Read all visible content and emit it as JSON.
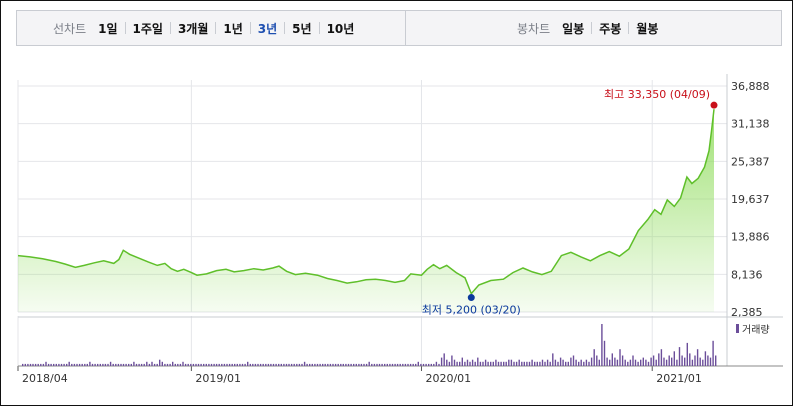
{
  "toolbar": {
    "line_chart_label": "선차트",
    "periods": [
      "1일",
      "1주일",
      "3개월",
      "1년",
      "3년",
      "5년",
      "10년"
    ],
    "active_period": "3년",
    "candle_chart_label": "봉차트",
    "candle_periods": [
      "일봉",
      "주봉",
      "월봉"
    ]
  },
  "chart_data": {
    "type": "line",
    "y_ticks": [
      "36,888",
      "31,138",
      "25,387",
      "19,637",
      "13,886",
      "8,136",
      "2,385"
    ],
    "ylim": [
      2385,
      36888
    ],
    "x_ticks": [
      "2018/04",
      "2019/01",
      "2020/01",
      "2021/01"
    ],
    "max_label": "최고 33,350 (04/09)",
    "min_label": "최저 5,200 (03/20)",
    "volume_label": "거래량",
    "colors": {
      "line": "#5fbf2a",
      "fill": "#8fdc5c",
      "max": "#c8101a",
      "min": "#0b3a9c",
      "volume": "#6b4e9a"
    },
    "price": [
      [
        "2018-04-01",
        11000
      ],
      [
        "2018-04-20",
        10800
      ],
      [
        "2018-05-10",
        10500
      ],
      [
        "2018-05-31",
        10100
      ],
      [
        "2018-06-15",
        9700
      ],
      [
        "2018-07-01",
        9200
      ],
      [
        "2018-07-15",
        9500
      ],
      [
        "2018-07-31",
        9900
      ],
      [
        "2018-08-15",
        10200
      ],
      [
        "2018-08-31",
        9800
      ],
      [
        "2018-09-08",
        10400
      ],
      [
        "2018-09-15",
        11800
      ],
      [
        "2018-09-25",
        11200
      ],
      [
        "2018-10-10",
        10600
      ],
      [
        "2018-10-25",
        10000
      ],
      [
        "2018-11-08",
        9500
      ],
      [
        "2018-11-20",
        9800
      ],
      [
        "2018-11-30",
        9000
      ],
      [
        "2018-12-10",
        8600
      ],
      [
        "2018-12-20",
        8900
      ],
      [
        "2019-01-01",
        8400
      ],
      [
        "2019-01-10",
        8000
      ],
      [
        "2019-01-25",
        8200
      ],
      [
        "2019-02-10",
        8700
      ],
      [
        "2019-02-25",
        8900
      ],
      [
        "2019-03-10",
        8500
      ],
      [
        "2019-03-25",
        8700
      ],
      [
        "2019-04-10",
        9000
      ],
      [
        "2019-04-25",
        8800
      ],
      [
        "2019-05-10",
        9100
      ],
      [
        "2019-05-20",
        9400
      ],
      [
        "2019-06-01",
        8600
      ],
      [
        "2019-06-15",
        8100
      ],
      [
        "2019-07-01",
        8300
      ],
      [
        "2019-07-20",
        8000
      ],
      [
        "2019-08-05",
        7500
      ],
      [
        "2019-08-20",
        7200
      ],
      [
        "2019-09-05",
        6800
      ],
      [
        "2019-09-20",
        7000
      ],
      [
        "2019-10-05",
        7300
      ],
      [
        "2019-10-20",
        7400
      ],
      [
        "2019-11-05",
        7200
      ],
      [
        "2019-11-20",
        6900
      ],
      [
        "2019-12-05",
        7200
      ],
      [
        "2019-12-15",
        8200
      ],
      [
        "2020-01-01",
        8000
      ],
      [
        "2020-01-10",
        8900
      ],
      [
        "2020-01-20",
        9600
      ],
      [
        "2020-01-30",
        9000
      ],
      [
        "2020-02-10",
        9500
      ],
      [
        "2020-02-25",
        8400
      ],
      [
        "2020-03-10",
        7600
      ],
      [
        "2020-03-20",
        5200
      ],
      [
        "2020-04-01",
        6500
      ],
      [
        "2020-04-20",
        7200
      ],
      [
        "2020-05-10",
        7400
      ],
      [
        "2020-05-25",
        8400
      ],
      [
        "2020-06-10",
        9100
      ],
      [
        "2020-06-25",
        8500
      ],
      [
        "2020-07-10",
        8100
      ],
      [
        "2020-07-25",
        8600
      ],
      [
        "2020-08-10",
        11000
      ],
      [
        "2020-08-25",
        11500
      ],
      [
        "2020-09-10",
        10800
      ],
      [
        "2020-09-25",
        10200
      ],
      [
        "2020-10-10",
        11000
      ],
      [
        "2020-10-25",
        11600
      ],
      [
        "2020-11-10",
        10900
      ],
      [
        "2020-11-25",
        12000
      ],
      [
        "2020-12-10",
        14800
      ],
      [
        "2020-12-25",
        16500
      ],
      [
        "2021-01-05",
        18000
      ],
      [
        "2021-01-15",
        17300
      ],
      [
        "2021-01-25",
        19500
      ],
      [
        "2021-02-05",
        18500
      ],
      [
        "2021-02-15",
        19800
      ],
      [
        "2021-02-25",
        23000
      ],
      [
        "2021-03-05",
        22000
      ],
      [
        "2021-03-15",
        22800
      ],
      [
        "2021-03-25",
        24500
      ],
      [
        "2021-04-01",
        27000
      ],
      [
        "2021-04-05",
        30000
      ],
      [
        "2021-04-09",
        33350
      ]
    ],
    "volume": [
      1,
      1,
      1,
      1,
      1,
      1,
      1,
      1,
      1,
      2,
      1,
      1,
      1,
      1,
      1,
      1,
      1,
      1,
      2,
      1,
      1,
      1,
      1,
      1,
      1,
      1,
      2,
      1,
      1,
      1,
      1,
      1,
      1,
      1,
      2,
      1,
      1,
      1,
      1,
      1,
      1,
      1,
      1,
      2,
      1,
      1,
      1,
      1,
      2,
      1,
      2,
      1,
      1,
      3,
      2,
      1,
      1,
      1,
      2,
      1,
      1,
      1,
      2,
      1,
      1,
      1,
      1,
      1,
      1,
      1,
      1,
      1,
      1,
      1,
      1,
      1,
      1,
      1,
      1,
      1,
      1,
      1,
      1,
      1,
      1,
      1,
      1,
      2,
      1,
      1,
      1,
      1,
      1,
      1,
      1,
      1,
      1,
      1,
      1,
      1,
      1,
      1,
      1,
      1,
      1,
      1,
      1,
      1,
      1,
      2,
      1,
      1,
      1,
      1,
      1,
      1,
      1,
      1,
      1,
      1,
      1,
      1,
      1,
      1,
      1,
      1,
      1,
      1,
      1,
      1,
      1,
      1,
      1,
      1,
      2,
      1,
      1,
      1,
      1,
      1,
      1,
      1,
      1,
      1,
      1,
      1,
      1,
      1,
      1,
      1,
      1,
      1,
      1,
      2,
      1,
      1,
      1,
      1,
      1,
      1,
      2,
      1,
      4,
      6,
      3,
      2,
      5,
      3,
      2,
      2,
      4,
      2,
      3,
      2,
      3,
      2,
      4,
      2,
      2,
      3,
      2,
      2,
      2,
      3,
      2,
      2,
      2,
      2,
      3,
      3,
      2,
      2,
      3,
      2,
      2,
      2,
      2,
      3,
      2,
      2,
      2,
      3,
      2,
      3,
      2,
      6,
      3,
      2,
      4,
      3,
      2,
      2,
      4,
      5,
      3,
      2,
      3,
      2,
      3,
      2,
      4,
      8,
      5,
      3,
      20,
      12,
      4,
      3,
      6,
      4,
      3,
      8,
      5,
      3,
      2,
      3,
      5,
      3,
      2,
      3,
      4,
      3,
      2,
      4,
      5,
      3,
      6,
      8,
      4,
      3,
      5,
      4,
      7,
      3,
      9,
      5,
      4,
      11,
      6,
      3,
      5,
      8,
      4,
      3,
      7,
      5,
      4,
      12,
      5
    ]
  }
}
